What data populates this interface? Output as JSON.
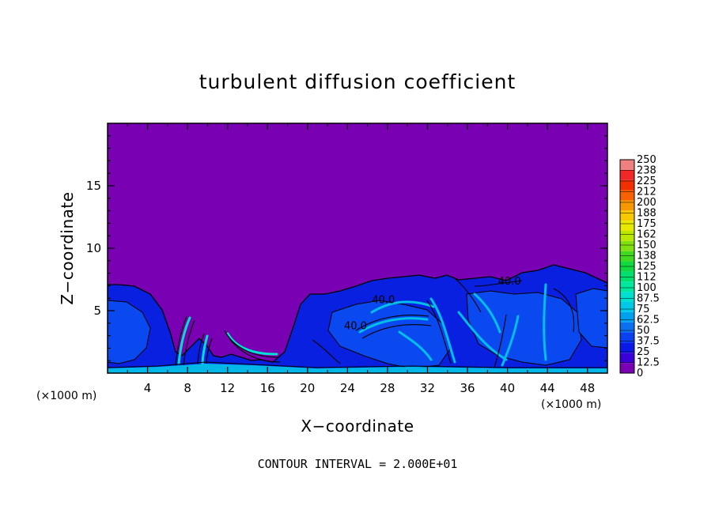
{
  "chart_data": {
    "type": "heatmap",
    "title": "turbulent diffusion coefficient",
    "xlabel": "X−coordinate",
    "ylabel": "Z−coordinate",
    "x_unit": "(×1000 m)",
    "z_unit": "(×1000 m)",
    "xlim": [
      0,
      50
    ],
    "ylim": [
      0,
      20
    ],
    "xticks": [
      4,
      8,
      12,
      16,
      20,
      24,
      28,
      32,
      36,
      40,
      44,
      48
    ],
    "yticks": [
      5,
      10,
      15
    ],
    "colorbar": {
      "levels": [
        0,
        12.5,
        25,
        37.5,
        50,
        62.5,
        75,
        87.5,
        100,
        112,
        125,
        138,
        150,
        162,
        175,
        188,
        200,
        212,
        225,
        238,
        250
      ],
      "labels": [
        "0",
        "12.5",
        "25",
        "37.5",
        "50",
        "62.5",
        "75",
        "87.5",
        "100",
        "112",
        "125",
        "138",
        "150",
        "162",
        "175",
        "188",
        "200",
        "212",
        "225",
        "238",
        "250"
      ],
      "colors": [
        "#7a00b4",
        "#3a00d8",
        "#0a18e8",
        "#0a40f0",
        "#0a70f0",
        "#00a0f0",
        "#00c8e8",
        "#00e0d0",
        "#00e8a0",
        "#00e070",
        "#10d840",
        "#40d820",
        "#80e010",
        "#b8e800",
        "#e8e800",
        "#f8c800",
        "#f89800",
        "#f86000",
        "#f03000",
        "#f02828",
        "#f08080"
      ]
    },
    "background_value_color": "#7a00b4",
    "contour_labels": [
      {
        "text": "40.0",
        "x": 40.2,
        "z": 7.1
      },
      {
        "text": "40.0",
        "x": 27.6,
        "z": 5.6
      },
      {
        "text": "40.0",
        "x": 24.8,
        "z": 3.5
      }
    ],
    "contour_interval": "CONTOUR INTERVAL = 2.000E+01"
  }
}
